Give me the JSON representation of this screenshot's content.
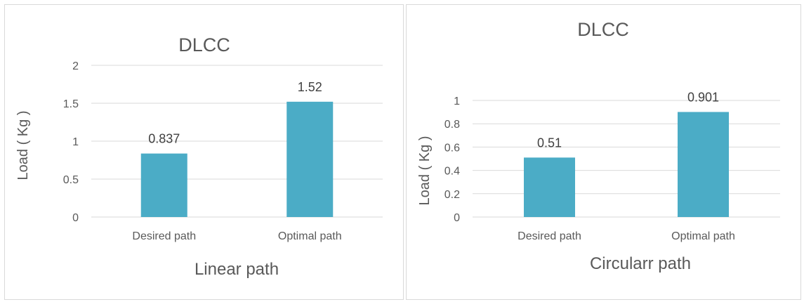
{
  "colors": {
    "bar": "#4BACC6",
    "grid": "#D9D9D9",
    "text": "#595959"
  },
  "chart_data": [
    {
      "type": "bar",
      "title": "DLCC",
      "xlabel": "Linear  path",
      "ylabel": "Load ( Kg )",
      "categories": [
        "Desired path",
        "Optimal path"
      ],
      "values": [
        0.837,
        1.52
      ],
      "value_labels": [
        "0.837",
        "1.52"
      ],
      "yticks": [
        "0",
        "0.5",
        "1",
        "1.5",
        "2"
      ],
      "ylim": [
        0,
        2
      ],
      "grid": true,
      "legend": "none"
    },
    {
      "type": "bar",
      "title": "DLCC",
      "xlabel": "Circularr  path",
      "ylabel": "Load ( Kg )",
      "categories": [
        "Desired path",
        "Optimal path"
      ],
      "values": [
        0.51,
        0.901
      ],
      "value_labels": [
        "0.51",
        "0.901"
      ],
      "yticks": [
        "0",
        "0.2",
        "0.4",
        "0.6",
        "0.8",
        "1"
      ],
      "ylim": [
        0,
        1
      ],
      "grid": true,
      "legend": "none"
    }
  ]
}
